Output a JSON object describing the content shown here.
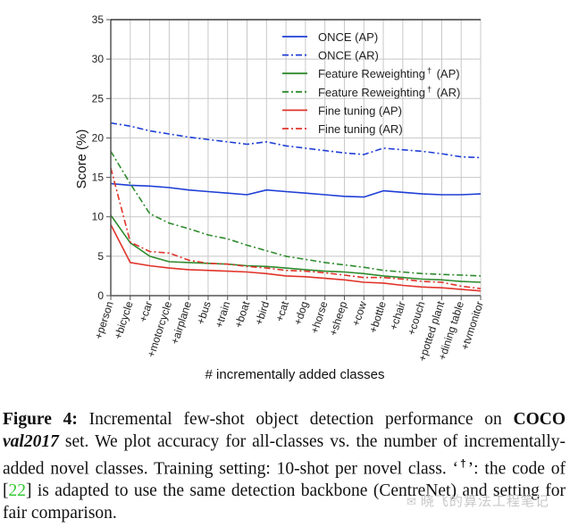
{
  "chart_data": {
    "type": "line",
    "title": "",
    "xlabel": "# incrementally added classes",
    "ylabel": "Score (%)",
    "ylim": [
      0,
      35
    ],
    "yticks": [
      0,
      5,
      10,
      15,
      20,
      25,
      30,
      35
    ],
    "grid": true,
    "legend_position": "top-right",
    "categories": [
      "+person",
      "+bicycle",
      "+car",
      "+motorcycle",
      "+airplane",
      "+bus",
      "+train",
      "+boat",
      "+bird",
      "+cat",
      "+dog",
      "+horse",
      "+sheep",
      "+cow",
      "+bottle",
      "+chair",
      "+couch",
      "+potted plant",
      "+dining table",
      "+tvmonitor"
    ],
    "series": [
      {
        "name": "ONCE (AP)",
        "label_main": "ONCE (AP)",
        "color": "#1f3fd6",
        "style": "solid",
        "values": [
          14.2,
          14.0,
          13.9,
          13.7,
          13.4,
          13.2,
          13.0,
          12.8,
          13.4,
          13.2,
          13.0,
          12.8,
          12.6,
          12.5,
          13.3,
          13.1,
          12.9,
          12.8,
          12.8,
          12.9
        ]
      },
      {
        "name": "ONCE (AR)",
        "label_main": "ONCE (AR)",
        "color": "#1f3fd6",
        "style": "dashdot",
        "values": [
          21.9,
          21.5,
          20.9,
          20.5,
          20.1,
          19.8,
          19.5,
          19.2,
          19.5,
          19.0,
          18.7,
          18.4,
          18.1,
          17.9,
          18.7,
          18.5,
          18.3,
          18.0,
          17.6,
          17.5
        ]
      },
      {
        "name": "Feature Reweighting† (AP)",
        "label_main": "Feature Reweighting",
        "label_sup": "†",
        "label_suffix": " (AP)",
        "color": "#2e8b2e",
        "style": "solid",
        "values": [
          10.2,
          6.7,
          5.0,
          4.3,
          4.2,
          4.1,
          4.0,
          3.8,
          3.7,
          3.5,
          3.3,
          3.1,
          3.0,
          2.8,
          2.5,
          2.3,
          2.1,
          2.0,
          1.8,
          1.7
        ]
      },
      {
        "name": "Feature Reweighting† (AR)",
        "label_main": "Feature Reweighting",
        "label_sup": "†",
        "label_suffix": " (AR)",
        "color": "#2e8b2e",
        "style": "dashdot",
        "values": [
          18.3,
          14.2,
          10.4,
          9.2,
          8.5,
          7.7,
          7.2,
          6.4,
          5.7,
          5.0,
          4.6,
          4.2,
          3.9,
          3.6,
          3.2,
          3.0,
          2.8,
          2.7,
          2.6,
          2.5
        ]
      },
      {
        "name": "Fine tuning (AP)",
        "label_main": "Fine tuning (AP)",
        "color": "#e0342a",
        "style": "solid",
        "values": [
          9.0,
          4.2,
          3.8,
          3.5,
          3.3,
          3.2,
          3.1,
          3.0,
          2.8,
          2.5,
          2.4,
          2.2,
          2.0,
          1.7,
          1.6,
          1.3,
          1.1,
          1.0,
          0.8,
          0.6
        ]
      },
      {
        "name": "Fine tuning (AR)",
        "label_main": "Fine tuning (AR)",
        "color": "#e0342a",
        "style": "dashdot",
        "values": [
          16.2,
          6.8,
          5.6,
          5.4,
          4.5,
          4.1,
          4.0,
          3.7,
          3.5,
          3.2,
          3.1,
          2.9,
          2.6,
          2.3,
          2.3,
          2.1,
          1.8,
          1.7,
          1.2,
          0.9
        ]
      }
    ]
  },
  "caption": {
    "label": "Figure 4:",
    "part1": " Incremental few-shot object detection performance on ",
    "dataset": "COCO val2017",
    "dataset_bold": "COCO",
    "dataset_italic": "val2017",
    "part2": " set.  We plot accuracy for all-classes vs.  the number of incrementally-added novel classes.  Training setting: 10-shot per novel class. ‘",
    "dagger": "†",
    "part3": "’: the code of [",
    "cite": "22",
    "part4": "] is adapted to use the same detection backbone (CentreNet) and setting for fair comparison."
  },
  "watermark": {
    "icon": "wechat-icon",
    "text": "晓飞的算法工程笔记"
  }
}
